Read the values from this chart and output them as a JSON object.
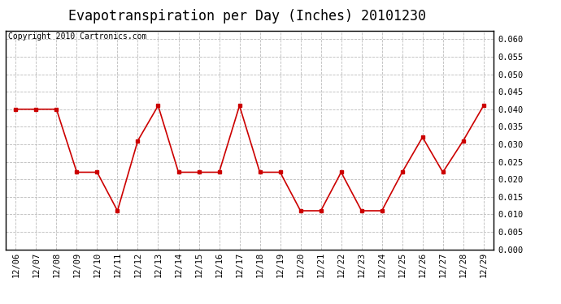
{
  "title": "Evapotranspiration per Day (Inches) 20101230",
  "copyright": "Copyright 2010 Cartronics.com",
  "labels": [
    "12/06",
    "12/07",
    "12/08",
    "12/09",
    "12/10",
    "12/11",
    "12/12",
    "12/13",
    "12/14",
    "12/15",
    "12/16",
    "12/17",
    "12/18",
    "12/19",
    "12/20",
    "12/21",
    "12/22",
    "12/23",
    "12/24",
    "12/25",
    "12/26",
    "12/27",
    "12/28",
    "12/29"
  ],
  "values": [
    0.04,
    0.04,
    0.04,
    0.022,
    0.022,
    0.011,
    0.031,
    0.041,
    0.022,
    0.022,
    0.022,
    0.041,
    0.022,
    0.022,
    0.011,
    0.011,
    0.022,
    0.011,
    0.011,
    0.022,
    0.032,
    0.022,
    0.031,
    0.041
  ],
  "line_color": "#cc0000",
  "marker": "s",
  "marker_size": 3,
  "ylim": [
    0.0,
    0.0625
  ],
  "yticks": [
    0.0,
    0.005,
    0.01,
    0.015,
    0.02,
    0.025,
    0.03,
    0.035,
    0.04,
    0.045,
    0.05,
    0.055,
    0.06
  ],
  "grid_color": "#bbbbbb",
  "background_color": "#ffffff",
  "title_fontsize": 12,
  "copyright_fontsize": 7,
  "tick_fontsize": 7.5
}
